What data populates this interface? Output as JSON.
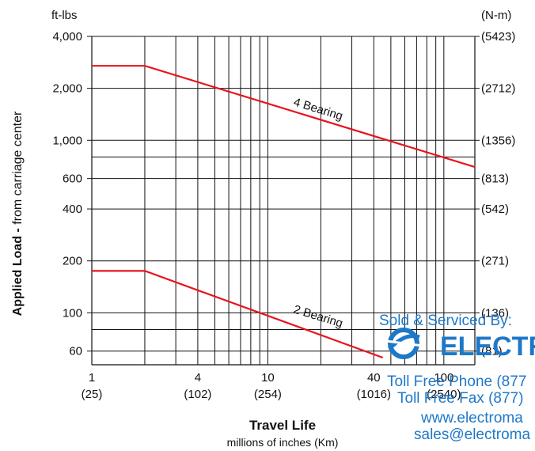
{
  "chart_data": {
    "type": "line",
    "title": "",
    "xlabel": "Travel Life",
    "xlabel_sub": "millions of inches  (Km)",
    "ylabel_bold": "Applied Load -",
    "ylabel_rest": " from carriage center",
    "y_unit_left": "ft-lbs",
    "y_unit_right": "(N-m)",
    "xscale": "log",
    "yscale": "log",
    "xlim": [
      1,
      150
    ],
    "ylim": [
      50,
      4000
    ],
    "grid": true,
    "x_ticks": [
      {
        "value": 1,
        "label": "1",
        "sublabel": "(25)"
      },
      {
        "value": 4,
        "label": "4",
        "sublabel": "(102)"
      },
      {
        "value": 10,
        "label": "10",
        "sublabel": "(254)"
      },
      {
        "value": 40,
        "label": "40",
        "sublabel": "(1016)"
      },
      {
        "value": 100,
        "label": "100",
        "sublabel": "(2540)"
      }
    ],
    "x_grid": [
      1,
      2,
      3,
      4,
      5,
      6,
      7,
      8,
      9,
      10,
      20,
      30,
      40,
      50,
      60,
      70,
      80,
      90,
      100
    ],
    "y_ticks_left": [
      {
        "value": 4000,
        "label": "4,000"
      },
      {
        "value": 2000,
        "label": "2,000"
      },
      {
        "value": 1000,
        "label": "1,000"
      },
      {
        "value": 600,
        "label": "600"
      },
      {
        "value": 400,
        "label": "400"
      },
      {
        "value": 200,
        "label": "200"
      },
      {
        "value": 100,
        "label": "100"
      },
      {
        "value": 60,
        "label": "60"
      }
    ],
    "y_ticks_right": [
      {
        "value": 4000,
        "label": "(5423)"
      },
      {
        "value": 2000,
        "label": "(2712)"
      },
      {
        "value": 1000,
        "label": "(1356)"
      },
      {
        "value": 600,
        "label": "(813)"
      },
      {
        "value": 400,
        "label": "(542)"
      },
      {
        "value": 200,
        "label": "(271)"
      },
      {
        "value": 100,
        "label": "(136)"
      },
      {
        "value": 60,
        "label": "(81)"
      }
    ],
    "y_grid": [
      4000,
      2000,
      1000,
      800,
      600,
      400,
      200,
      100,
      80,
      60
    ],
    "series": [
      {
        "name": "4 Bearing",
        "color": "#e8141c",
        "x": [
          1,
          2,
          150
        ],
        "y": [
          2700,
          2700,
          700
        ]
      },
      {
        "name": "2 Bearing",
        "color": "#e8141c",
        "x": [
          1,
          2,
          45
        ],
        "y": [
          175,
          175,
          55
        ]
      }
    ]
  },
  "watermark": {
    "line1": "Sold & Serviced By:",
    "brand": "ELECTR",
    "phone": "Toll Free Phone  (877",
    "fax": "Toll Free Fax  (877)",
    "web": "www.electroma",
    "email": "sales@electroma",
    "color": "#1e78c8"
  }
}
